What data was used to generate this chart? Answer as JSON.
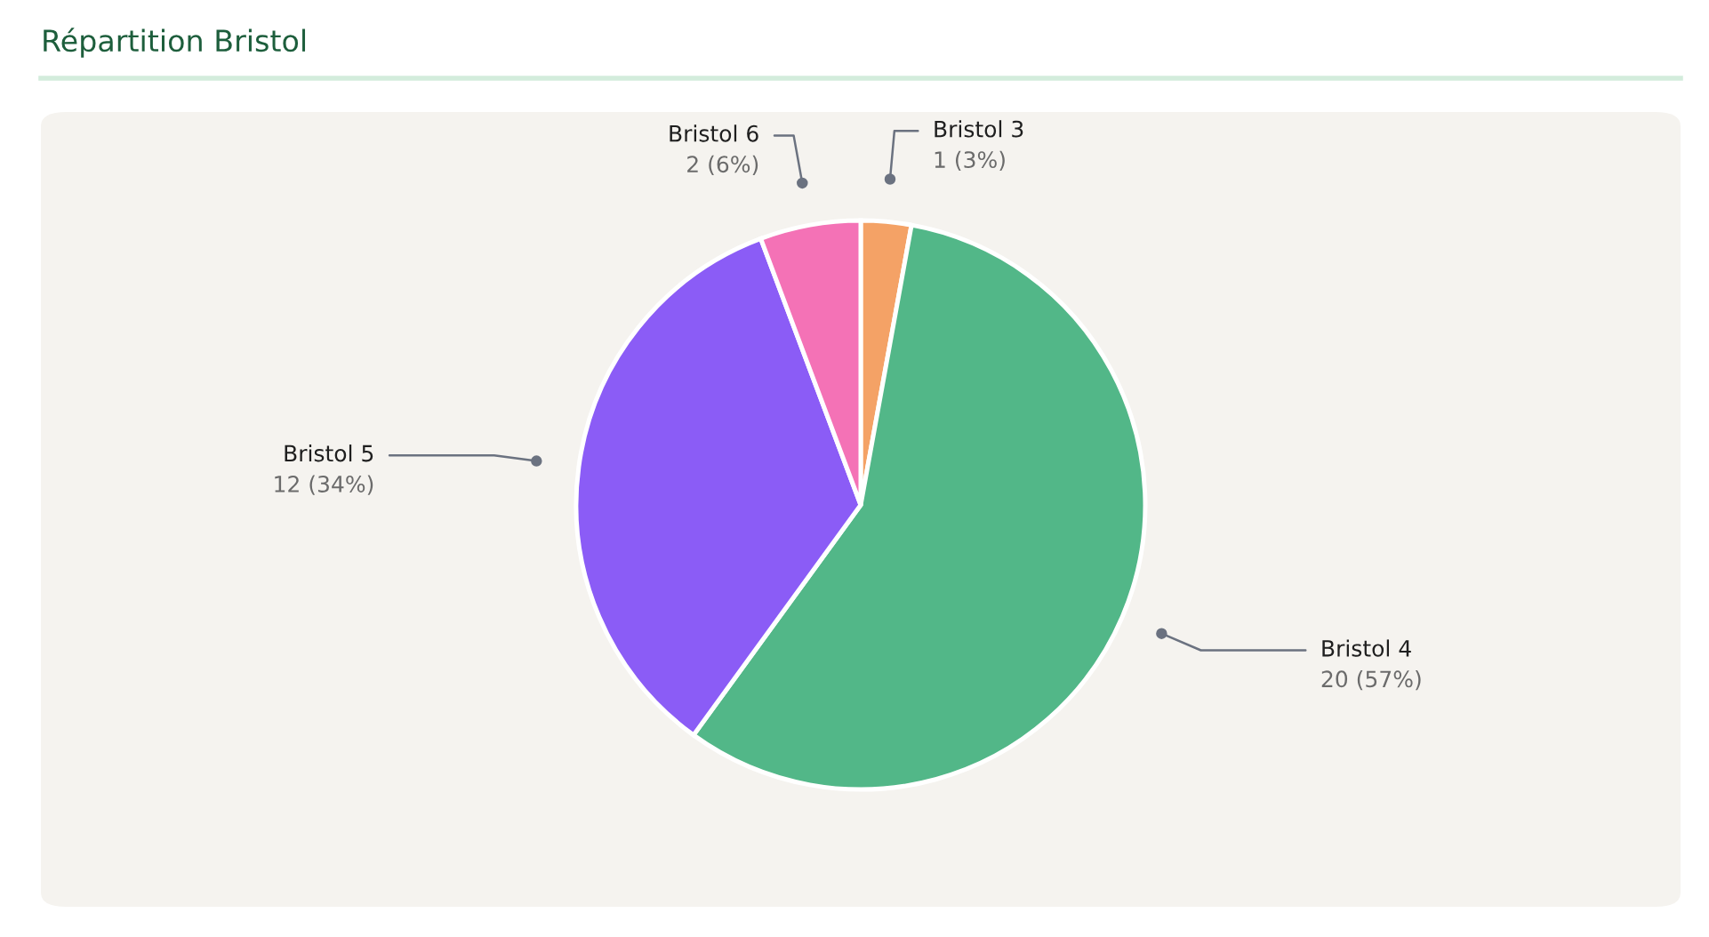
{
  "chart_data": {
    "type": "pie",
    "title": "Répartition Bristol",
    "categories": [
      "Bristol 3",
      "Bristol 4",
      "Bristol 5",
      "Bristol 6"
    ],
    "values": [
      1,
      20,
      12,
      2
    ],
    "value_labels": [
      "1 (3%)",
      "20 (57%)",
      "12 (34%)",
      "2 (6%)"
    ],
    "colors": [
      "#f4a266",
      "#52b788",
      "#8b5cf6",
      "#f472b6"
    ],
    "legend": false
  }
}
